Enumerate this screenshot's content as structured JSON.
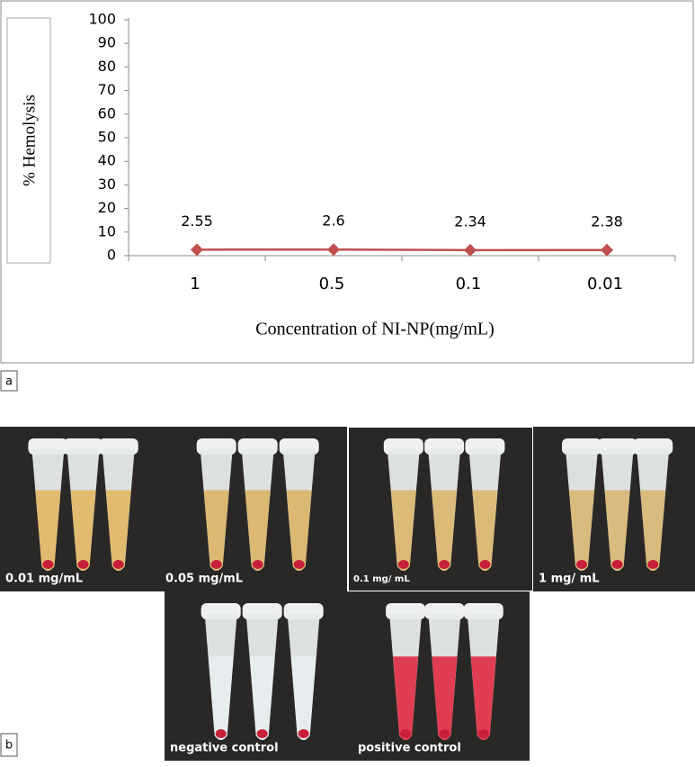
{
  "chart_data": {
    "type": "line",
    "y_label": "% Hemolysis",
    "x_label": "Concentration of NI-NP(mg/mL)",
    "categories": [
      "1",
      "0.5",
      "0.1",
      "0.01"
    ],
    "series": [
      {
        "color": "#c0504d",
        "values": [
          2.55,
          2.6,
          2.34,
          2.38
        ]
      }
    ],
    "ylim": [
      0,
      100
    ],
    "yticks": [
      0,
      10,
      20,
      30,
      40,
      50,
      60,
      70,
      80,
      90,
      100
    ],
    "grid": false
  },
  "panels": {
    "a": "a",
    "b": "b"
  },
  "photos": [
    "0.01 mg/mL",
    "0.05 mg/mL",
    "0.1 mg/ mL",
    "1 mg/ mL",
    "negative control",
    "positive control"
  ]
}
